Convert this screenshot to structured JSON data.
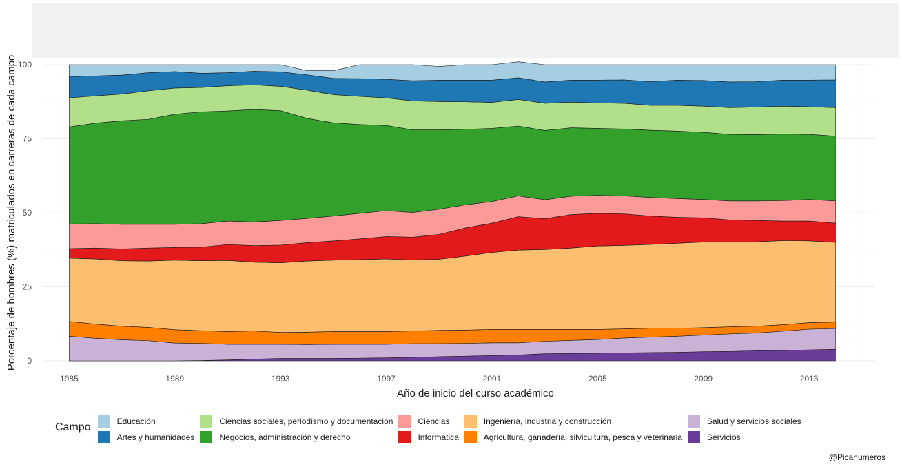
{
  "caption": "@Picanumeros",
  "chart_data": {
    "type": "area",
    "stacked": true,
    "title": "",
    "xlabel": "Año de inicio del curso académico",
    "ylabel": "Porcentaje de hombres (%) matriculados en carreras de cada campo",
    "xlim": [
      1984,
      2015.5
    ],
    "ylim": [
      0,
      100
    ],
    "x_ticks": [
      1985,
      1989,
      1993,
      1997,
      2001,
      2005,
      2009,
      2013
    ],
    "y_ticks": [
      0,
      25,
      50,
      75,
      100
    ],
    "x": [
      1985,
      1986,
      1987,
      1988,
      1989,
      1990,
      1991,
      1992,
      1993,
      1994,
      1995,
      1996,
      1997,
      1998,
      1999,
      2000,
      2001,
      2002,
      2003,
      2004,
      2005,
      2006,
      2007,
      2008,
      2009,
      2010,
      2011,
      2012,
      2013,
      2014
    ],
    "stack_order": "bottom-to-top",
    "legend_title": "Campo",
    "legend_position": "bottom",
    "series": [
      {
        "name": "Servicios",
        "color": "#6a3d9a",
        "values": [
          0.0,
          0.0,
          0.0,
          0.0,
          0.0,
          0.1,
          0.3,
          0.6,
          0.8,
          0.8,
          0.8,
          0.9,
          1.0,
          1.2,
          1.4,
          1.6,
          1.8,
          2.0,
          2.4,
          2.5,
          2.6,
          2.7,
          2.8,
          2.9,
          3.1,
          3.2,
          3.4,
          3.5,
          3.7,
          3.9
        ]
      },
      {
        "name": "Salud y servicios sociales",
        "color": "#cab2d6",
        "values": [
          8.3,
          7.6,
          7.1,
          6.8,
          6.0,
          5.8,
          5.3,
          5.0,
          4.8,
          4.7,
          4.8,
          4.7,
          4.6,
          4.6,
          4.4,
          4.3,
          4.3,
          4.1,
          4.2,
          4.4,
          4.6,
          5.0,
          5.2,
          5.4,
          5.6,
          5.9,
          6.0,
          6.5,
          7.0,
          7.0
        ]
      },
      {
        "name": "Agricultura, ganadería, silvicultura, pesca y veterinaria",
        "color": "#ff7f00",
        "values": [
          5.0,
          4.8,
          4.6,
          4.5,
          4.5,
          4.3,
          4.3,
          4.5,
          4.0,
          4.2,
          4.3,
          4.3,
          4.3,
          4.3,
          4.5,
          4.5,
          4.5,
          4.5,
          4.0,
          3.7,
          3.4,
          3.1,
          3.0,
          2.7,
          2.5,
          2.4,
          2.3,
          2.2,
          2.2,
          2.2
        ]
      },
      {
        "name": "Ingeniería, industria y construcción",
        "color": "#fdbf6f",
        "values": [
          21.4,
          22.0,
          22.1,
          22.4,
          23.5,
          23.6,
          24.0,
          23.2,
          23.5,
          24.0,
          24.1,
          24.3,
          24.5,
          24.0,
          24.0,
          25.0,
          26.0,
          26.8,
          27.0,
          27.5,
          28.2,
          28.2,
          28.3,
          28.7,
          28.9,
          28.6,
          28.5,
          28.4,
          27.6,
          26.9
        ]
      },
      {
        "name": "Informática",
        "color": "#e31a1c",
        "values": [
          3.2,
          3.7,
          4.0,
          4.4,
          4.3,
          4.6,
          5.4,
          5.6,
          6.0,
          6.2,
          6.5,
          7.0,
          7.6,
          7.7,
          8.4,
          9.5,
          9.9,
          11.3,
          10.4,
          11.3,
          11.0,
          10.6,
          9.6,
          8.8,
          8.2,
          7.5,
          7.2,
          6.6,
          6.7,
          6.5
        ]
      },
      {
        "name": "Ciencias",
        "color": "#fb9a99",
        "values": [
          8.3,
          8.2,
          8.3,
          8.0,
          7.8,
          7.9,
          7.9,
          8.0,
          8.3,
          8.2,
          8.4,
          8.6,
          8.7,
          8.3,
          8.5,
          7.8,
          7.3,
          7.0,
          6.4,
          6.2,
          6.1,
          6.1,
          6.3,
          6.3,
          6.2,
          6.4,
          6.6,
          6.9,
          7.3,
          7.5
        ]
      },
      {
        "name": "Negocios, administración y derecho",
        "color": "#33a02c",
        "values": [
          32.8,
          34.0,
          35.0,
          35.5,
          37.2,
          37.8,
          37.2,
          38.0,
          37.1,
          33.8,
          31.5,
          30.0,
          28.8,
          27.9,
          26.8,
          25.5,
          24.7,
          23.6,
          23.4,
          23.1,
          22.6,
          22.6,
          22.7,
          22.8,
          22.7,
          22.5,
          22.4,
          22.5,
          22.0,
          21.9
        ]
      },
      {
        "name": "Ciencias sociales, periodismo y documentación",
        "color": "#b2df8a",
        "values": [
          9.8,
          9.2,
          9.0,
          9.6,
          8.8,
          8.2,
          8.5,
          8.3,
          8.2,
          9.5,
          9.5,
          9.5,
          9.3,
          9.8,
          9.6,
          9.3,
          8.8,
          9.0,
          9.2,
          8.7,
          8.6,
          8.7,
          8.4,
          8.7,
          8.8,
          9.0,
          9.3,
          9.4,
          9.3,
          9.6
        ]
      },
      {
        "name": "Artes y humanidades",
        "color": "#1f78b4",
        "values": [
          7.2,
          6.7,
          6.4,
          6.1,
          5.6,
          4.8,
          4.4,
          4.6,
          4.9,
          5.2,
          5.5,
          6.0,
          6.3,
          6.8,
          7.2,
          7.3,
          7.5,
          7.3,
          7.2,
          7.4,
          7.7,
          7.9,
          8.0,
          8.5,
          8.7,
          8.7,
          8.6,
          8.8,
          9.0,
          9.4
        ]
      },
      {
        "name": "Educación",
        "color": "#a6cee3",
        "values": [
          4.0,
          3.8,
          3.5,
          2.7,
          2.3,
          2.9,
          2.7,
          2.2,
          2.4,
          1.4,
          2.6,
          4.7,
          4.9,
          5.4,
          4.6,
          5.2,
          5.2,
          5.4,
          5.8,
          5.2,
          5.2,
          5.1,
          5.7,
          5.2,
          5.3,
          5.8,
          5.7,
          5.2,
          5.2,
          5.1
        ]
      }
    ],
    "legend_columns": [
      [
        "Educación",
        "Artes y humanidades"
      ],
      [
        "Ciencias sociales, periodismo y documentación",
        "Negocios, administración y derecho"
      ],
      [
        "Ciencias",
        "Informática"
      ],
      [
        "Ingeniería, industria y construcción",
        "Agricultura, ganadería, silvicultura, pesca y veterinaria"
      ],
      [
        "Salud y servicios sociales",
        "Servicios"
      ]
    ]
  }
}
